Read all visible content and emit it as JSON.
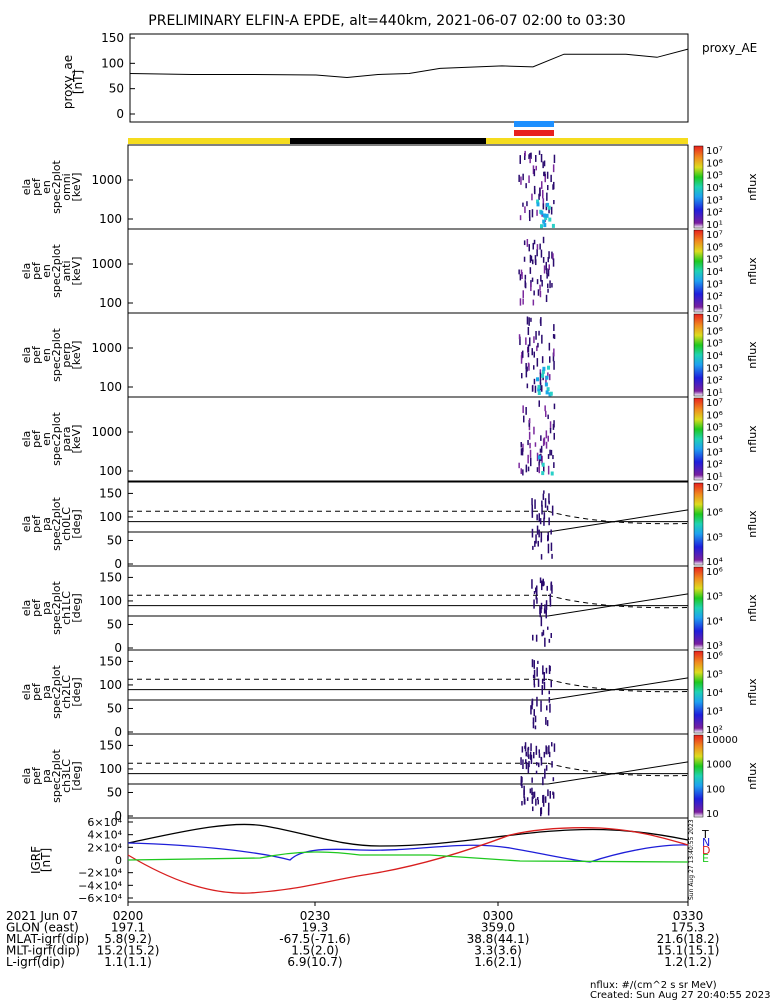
{
  "title": "PRELIMINARY ELFIN-A EPDE, alt=440km, 2021-06-07 02:00 to 03:30",
  "colors": {
    "state_bar_yellow": "#f5dc1e",
    "state_bar_black": "#000000",
    "science_blue": "#1e90ff",
    "science_red": "#e8201e",
    "igrf_t": "#000000",
    "igrf_n": "#1e1ed8",
    "igrf_d": "#d81e1e",
    "igrf_e": "#1ec81e"
  },
  "proxy_ae": {
    "ylabel": "proxy_ae\n[nT]",
    "legend": "proxy_AE",
    "ticks": [
      "150",
      "100",
      "50",
      "0"
    ]
  },
  "spec_panels": [
    {
      "label": "ela\npef\nen\nspec2plot\nomni\n[keV]",
      "ticks": [
        "1000",
        "100"
      ]
    },
    {
      "label": "ela\npef\nen\nspec2plot\nanti\n[keV]",
      "ticks": [
        "1000",
        "100"
      ]
    },
    {
      "label": "ela\npef\nen\nspec2plot\nperp\n[keV]",
      "ticks": [
        "1000",
        "100"
      ]
    },
    {
      "label": "ela\npef\nen\nspec2plot\npara\n[keV]",
      "ticks": [
        "1000",
        "100"
      ]
    }
  ],
  "pa_panels": [
    {
      "label": "ela\npef\npa\nspec2plot\nch0LC\n[deg]",
      "ticks": [
        "150",
        "100",
        "50",
        "0"
      ]
    },
    {
      "label": "ela\npef\npa\nspec2plot\nch1LC\n[deg]",
      "ticks": [
        "150",
        "100",
        "50",
        "0"
      ]
    },
    {
      "label": "ela\npef\npa\nspec2plot\nch2LC\n[deg]",
      "ticks": [
        "150",
        "100",
        "50",
        "0"
      ]
    },
    {
      "label": "ela\npef\npa\nspec2plot\nch3LC\n[deg]",
      "ticks": [
        "150",
        "100",
        "50",
        "0"
      ]
    }
  ],
  "colorbars": [
    {
      "title": "nflux",
      "ticks": [
        "10⁷",
        "10⁶",
        "10⁵",
        "10⁴",
        "10³",
        "10²",
        "10¹"
      ]
    },
    {
      "title": "nflux",
      "ticks": [
        "10⁷",
        "10⁶",
        "10⁵",
        "10⁴",
        "10³",
        "10²",
        "10¹"
      ]
    },
    {
      "title": "nflux",
      "ticks": [
        "10⁷",
        "10⁶",
        "10⁵",
        "10⁴",
        "10³",
        "10²",
        "10¹"
      ]
    },
    {
      "title": "nflux",
      "ticks": [
        "10⁷",
        "10⁶",
        "10⁵",
        "10⁴",
        "10³",
        "10²",
        "10¹"
      ]
    },
    {
      "title": "nflux",
      "ticks": [
        "10⁷",
        "10⁶",
        "10⁵",
        "10⁴"
      ]
    },
    {
      "title": "nflux",
      "ticks": [
        "10⁶",
        "10⁵",
        "10⁴",
        "10³"
      ]
    },
    {
      "title": "nflux",
      "ticks": [
        "10⁶",
        "10⁵",
        "10⁴",
        "10³",
        "10²"
      ]
    },
    {
      "title": "nflux",
      "ticks": [
        "10000",
        "1000",
        "100",
        "10"
      ]
    }
  ],
  "igrf": {
    "ylabel": "IGRF\n[nT]",
    "ticks": [
      "6×10⁴",
      "4×10⁴",
      "2×10⁴",
      "0",
      "−2×10⁴",
      "−4×10⁴",
      "−6×10⁴"
    ],
    "legend": [
      "T",
      "N",
      "D",
      "E"
    ]
  },
  "footer": {
    "rows": [
      {
        "label": "2021 Jun 07",
        "values": [
          "0200",
          "0230",
          "0300",
          "0330"
        ]
      },
      {
        "label": "GLON (east)",
        "values": [
          "197.1",
          "19.3",
          "359.0",
          "175.3"
        ]
      },
      {
        "label": "MLAT-igrf(dip)",
        "values": [
          "5.8(9.2)",
          "-67.5(-71.6)",
          "38.8(44.1)",
          "21.6(18.2)"
        ]
      },
      {
        "label": "MLT-igrf(dip)",
        "values": [
          "15.2(15.2)",
          "1.5(2.0)",
          "3.3(3.6)",
          "15.1(15.1)"
        ]
      },
      {
        "label": "L-igrf(dip)",
        "values": [
          "1.1(1.1)",
          "6.9(10.7)",
          "1.6(2.1)",
          "1.2(1.2)"
        ]
      }
    ],
    "units_note": "nflux: #/(cm^2 s sr MeV)",
    "created": "Created: Sun Aug 27 20:40:55 2023",
    "side_stamp": "Sun Aug 27 13:40:55 2023"
  },
  "chart_data": {
    "type": "line",
    "title": "PRELIMINARY ELFIN-A EPDE, alt=440km, 2021-06-07 02:00 to 03:30",
    "x": [
      "0200",
      "0210",
      "0220",
      "0230",
      "0235",
      "0240",
      "0245",
      "0250",
      "0300",
      "0305",
      "0310",
      "0320",
      "0325",
      "0330"
    ],
    "xlabel": "",
    "series": [
      {
        "name": "proxy_AE",
        "values": [
          80,
          78,
          78,
          77,
          72,
          78,
          80,
          90,
          95,
          93,
          118,
          118,
          112,
          128
        ]
      }
    ],
    "ylim": [
      0,
      150
    ],
    "ylabel": "proxy_ae [nT]"
  }
}
